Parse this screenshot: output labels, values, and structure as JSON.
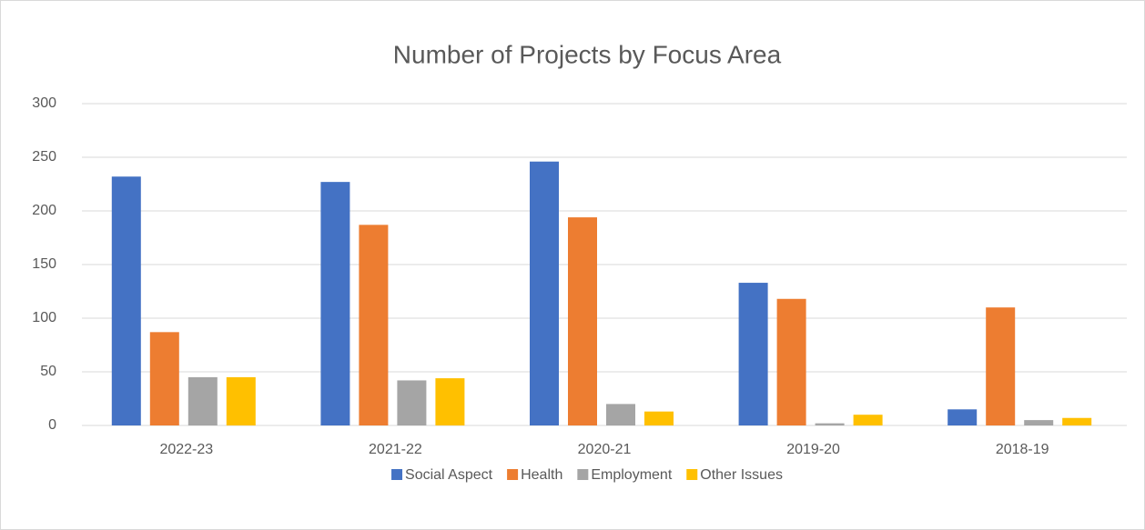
{
  "chart_data": {
    "type": "bar",
    "title": "Number of Projects by Focus Area",
    "categories": [
      "2022-23",
      "2021-22",
      "2020-21",
      "2019-20",
      "2018-19"
    ],
    "series": [
      {
        "name": "Social Aspect",
        "color": "#4472c4",
        "values": [
          232,
          227,
          246,
          133,
          15
        ]
      },
      {
        "name": "Health",
        "color": "#ed7d31",
        "values": [
          87,
          187,
          194,
          118,
          110
        ]
      },
      {
        "name": "Employment",
        "color": "#a5a5a5",
        "values": [
          45,
          42,
          20,
          2,
          5
        ]
      },
      {
        "name": "Other Issues",
        "color": "#ffc000",
        "values": [
          45,
          44,
          13,
          10,
          7
        ]
      }
    ],
    "ylim": [
      0,
      300
    ],
    "yticks": [
      0,
      50,
      100,
      150,
      200,
      250,
      300
    ],
    "grid": true,
    "legend": "bottom"
  }
}
